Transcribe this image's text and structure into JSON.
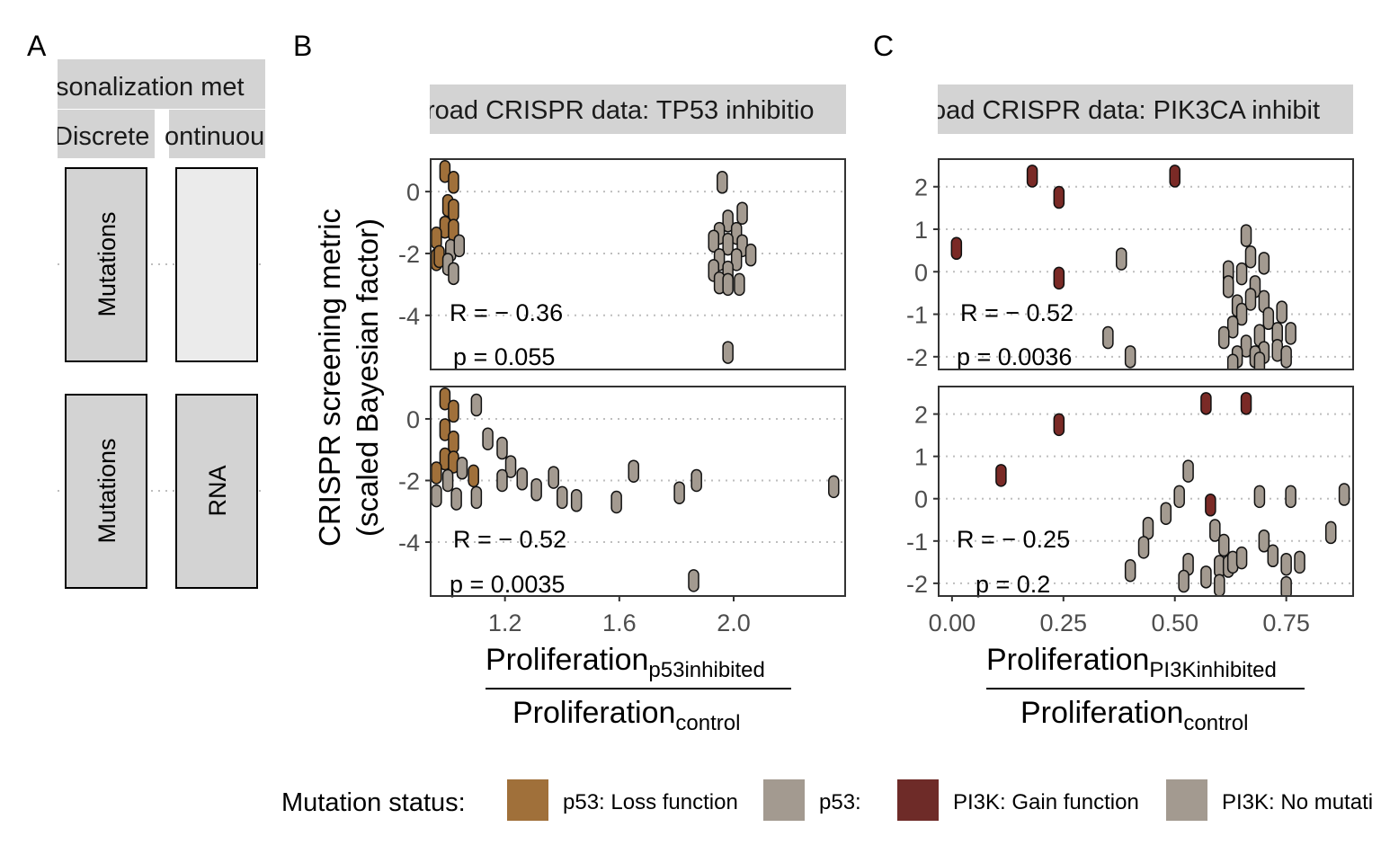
{
  "panel_labels": {
    "a": "A",
    "b": "B",
    "c": "C"
  },
  "panel_a": {
    "strip_title": "sonalization met",
    "col_discrete": "Discrete",
    "col_continuous": "ontinuou",
    "rows": [
      {
        "discrete": "Mutations",
        "continuous": ""
      },
      {
        "discrete": "Mutations",
        "continuous": "RNA"
      }
    ]
  },
  "y_title_line1": "CRISPR screening metric",
  "y_title_line2": "(scaled Bayesian factor)",
  "x_title_b": {
    "numerator": "Proliferation",
    "numerator_sub": "p53inhibited",
    "denominator": "Proliferation",
    "denominator_sub": "control"
  },
  "x_title_c": {
    "numerator": "Proliferation",
    "numerator_sub": "PI3Kinhibited",
    "denominator": "Proliferation",
    "denominator_sub": "control"
  },
  "legend": {
    "title": "Mutation status:",
    "items": [
      {
        "label": "p53: Loss function",
        "color": "#A0703A"
      },
      {
        "label": "p53:",
        "color": "#A39A90"
      },
      {
        "label": "PI3K: Gain function",
        "color": "#6E2B28"
      },
      {
        "label": "PI3K: No mutati",
        "color": "#A39A90"
      }
    ]
  },
  "colors": {
    "loss": "#A0703A",
    "gain": "#7A2A26",
    "none": "#A39A90",
    "strip": "#D3D3D3",
    "grid": "#BEBEBE"
  },
  "chart_data": [
    {
      "type": "scatter",
      "title": "road CRISPR data: TP53 inhibitio",
      "xticks": [
        "1.2",
        "1.6",
        "2.0"
      ],
      "xtick_values": [
        1.2,
        1.6,
        2.0
      ],
      "xlim": [
        0.94,
        2.39
      ],
      "panels": [
        {
          "ylim": [
            -5.75,
            1.05
          ],
          "yticks": [
            0,
            -2,
            -4
          ],
          "annotation": {
            "r": "R = − 0.36",
            "p": "p = 0.055"
          },
          "points": [
            {
              "x": 0.99,
              "y": 0.65,
              "s": "loss"
            },
            {
              "x": 1.02,
              "y": 0.3,
              "s": "loss"
            },
            {
              "x": 1.0,
              "y": -0.45,
              "s": "loss"
            },
            {
              "x": 1.02,
              "y": -0.6,
              "s": "loss"
            },
            {
              "x": 0.99,
              "y": -1.15,
              "s": "loss"
            },
            {
              "x": 1.02,
              "y": -1.25,
              "s": "loss"
            },
            {
              "x": 0.96,
              "y": -1.5,
              "s": "loss"
            },
            {
              "x": 0.96,
              "y": -2.2,
              "s": "loss"
            },
            {
              "x": 0.97,
              "y": -2.1,
              "s": "loss"
            },
            {
              "x": 1.01,
              "y": -1.9,
              "s": "none"
            },
            {
              "x": 1.04,
              "y": -1.75,
              "s": "none"
            },
            {
              "x": 1.0,
              "y": -2.35,
              "s": "none"
            },
            {
              "x": 1.02,
              "y": -2.65,
              "s": "none"
            },
            {
              "x": 1.96,
              "y": 0.3,
              "s": "none"
            },
            {
              "x": 2.03,
              "y": -0.7,
              "s": "none"
            },
            {
              "x": 1.98,
              "y": -0.95,
              "s": "none"
            },
            {
              "x": 1.95,
              "y": -1.35,
              "s": "none"
            },
            {
              "x": 2.01,
              "y": -1.35,
              "s": "none"
            },
            {
              "x": 1.93,
              "y": -1.6,
              "s": "none"
            },
            {
              "x": 1.98,
              "y": -1.7,
              "s": "none"
            },
            {
              "x": 2.03,
              "y": -1.75,
              "s": "none"
            },
            {
              "x": 2.06,
              "y": -2.05,
              "s": "none"
            },
            {
              "x": 1.95,
              "y": -2.2,
              "s": "none"
            },
            {
              "x": 2.01,
              "y": -2.2,
              "s": "none"
            },
            {
              "x": 1.93,
              "y": -2.55,
              "s": "none"
            },
            {
              "x": 1.98,
              "y": -2.6,
              "s": "none"
            },
            {
              "x": 1.95,
              "y": -2.95,
              "s": "none"
            },
            {
              "x": 1.98,
              "y": -3.0,
              "s": "none"
            },
            {
              "x": 2.02,
              "y": -3.0,
              "s": "none"
            },
            {
              "x": 1.98,
              "y": -5.2,
              "s": "none"
            }
          ]
        },
        {
          "ylim": [
            -5.75,
            1.05
          ],
          "yticks": [
            0,
            -2,
            -4
          ],
          "annotation": {
            "r": "R = − 0.52",
            "p": "p = 0.0035"
          },
          "points": [
            {
              "x": 0.99,
              "y": 0.65,
              "s": "loss"
            },
            {
              "x": 1.02,
              "y": 0.25,
              "s": "loss"
            },
            {
              "x": 0.99,
              "y": -0.35,
              "s": "loss"
            },
            {
              "x": 1.02,
              "y": -0.75,
              "s": "loss"
            },
            {
              "x": 0.99,
              "y": -1.3,
              "s": "loss"
            },
            {
              "x": 1.02,
              "y": -1.4,
              "s": "loss"
            },
            {
              "x": 0.96,
              "y": -1.75,
              "s": "loss"
            },
            {
              "x": 1.09,
              "y": -1.85,
              "s": "loss"
            },
            {
              "x": 1.1,
              "y": 0.45,
              "s": "none"
            },
            {
              "x": 1.14,
              "y": -0.65,
              "s": "none"
            },
            {
              "x": 1.19,
              "y": -0.95,
              "s": "none"
            },
            {
              "x": 1.05,
              "y": -1.6,
              "s": "none"
            },
            {
              "x": 1.22,
              "y": -1.55,
              "s": "none"
            },
            {
              "x": 1.26,
              "y": -1.95,
              "s": "none"
            },
            {
              "x": 1.19,
              "y": -2.0,
              "s": "none"
            },
            {
              "x": 1.31,
              "y": -2.3,
              "s": "none"
            },
            {
              "x": 1.37,
              "y": -1.9,
              "s": "none"
            },
            {
              "x": 1.4,
              "y": -2.55,
              "s": "none"
            },
            {
              "x": 1.45,
              "y": -2.65,
              "s": "none"
            },
            {
              "x": 1.59,
              "y": -2.7,
              "s": "none"
            },
            {
              "x": 1.65,
              "y": -1.7,
              "s": "none"
            },
            {
              "x": 1.81,
              "y": -2.4,
              "s": "none"
            },
            {
              "x": 1.87,
              "y": -2.0,
              "s": "none"
            },
            {
              "x": 2.35,
              "y": -2.2,
              "s": "none"
            },
            {
              "x": 1.86,
              "y": -5.25,
              "s": "none"
            },
            {
              "x": 0.96,
              "y": -2.5,
              "s": "none"
            },
            {
              "x": 1.0,
              "y": -2.0,
              "s": "none"
            },
            {
              "x": 1.03,
              "y": -2.6,
              "s": "none"
            },
            {
              "x": 1.1,
              "y": -2.55,
              "s": "none"
            }
          ]
        }
      ]
    },
    {
      "type": "scatter",
      "title": "oad CRISPR data: PIK3CA inhibit",
      "xticks": [
        "0.00",
        "0.25",
        "0.50",
        "0.75"
      ],
      "xtick_values": [
        0.0,
        0.25,
        0.5,
        0.75
      ],
      "xlim": [
        -0.03,
        0.9
      ],
      "panels": [
        {
          "ylim": [
            -2.3,
            2.65
          ],
          "yticks": [
            2,
            1,
            0,
            -1,
            -2
          ],
          "annotation": {
            "r": "R = − 0.52",
            "p": "p = 0.0036"
          },
          "points": [
            {
              "x": 0.18,
              "y": 2.25,
              "s": "gain"
            },
            {
              "x": 0.5,
              "y": 2.25,
              "s": "gain"
            },
            {
              "x": 0.24,
              "y": 1.75,
              "s": "gain"
            },
            {
              "x": 0.01,
              "y": 0.55,
              "s": "gain"
            },
            {
              "x": 0.24,
              "y": -0.15,
              "s": "gain"
            },
            {
              "x": 0.38,
              "y": 0.3,
              "s": "none"
            },
            {
              "x": 0.66,
              "y": 0.85,
              "s": "none"
            },
            {
              "x": 0.62,
              "y": 0.0,
              "s": "none"
            },
            {
              "x": 0.65,
              "y": -0.05,
              "s": "none"
            },
            {
              "x": 0.67,
              "y": 0.35,
              "s": "none"
            },
            {
              "x": 0.7,
              "y": 0.2,
              "s": "none"
            },
            {
              "x": 0.62,
              "y": -0.35,
              "s": "none"
            },
            {
              "x": 0.68,
              "y": -0.35,
              "s": "none"
            },
            {
              "x": 0.64,
              "y": -0.8,
              "s": "none"
            },
            {
              "x": 0.67,
              "y": -0.65,
              "s": "none"
            },
            {
              "x": 0.7,
              "y": -0.7,
              "s": "none"
            },
            {
              "x": 0.65,
              "y": -1.0,
              "s": "none"
            },
            {
              "x": 0.71,
              "y": -1.1,
              "s": "none"
            },
            {
              "x": 0.74,
              "y": -0.95,
              "s": "none"
            },
            {
              "x": 0.63,
              "y": -1.3,
              "s": "none"
            },
            {
              "x": 0.69,
              "y": -1.5,
              "s": "none"
            },
            {
              "x": 0.73,
              "y": -1.45,
              "s": "none"
            },
            {
              "x": 0.76,
              "y": -1.45,
              "s": "none"
            },
            {
              "x": 0.61,
              "y": -1.55,
              "s": "none"
            },
            {
              "x": 0.66,
              "y": -1.75,
              "s": "none"
            },
            {
              "x": 0.7,
              "y": -1.9,
              "s": "none"
            },
            {
              "x": 0.73,
              "y": -1.85,
              "s": "none"
            },
            {
              "x": 0.64,
              "y": -2.0,
              "s": "none"
            },
            {
              "x": 0.68,
              "y": -2.0,
              "s": "none"
            },
            {
              "x": 0.75,
              "y": -2.0,
              "s": "none"
            },
            {
              "x": 0.63,
              "y": -2.2,
              "s": "none"
            },
            {
              "x": 0.69,
              "y": -2.15,
              "s": "none"
            },
            {
              "x": 0.35,
              "y": -1.55,
              "s": "none"
            },
            {
              "x": 0.4,
              "y": -2.0,
              "s": "none"
            }
          ]
        },
        {
          "ylim": [
            -2.3,
            2.65
          ],
          "yticks": [
            2,
            1,
            0,
            -1,
            -2
          ],
          "annotation": {
            "r": "R = − 0.25",
            "p": "p = 0.2"
          },
          "points": [
            {
              "x": 0.57,
              "y": 2.25,
              "s": "gain"
            },
            {
              "x": 0.66,
              "y": 2.25,
              "s": "gain"
            },
            {
              "x": 0.24,
              "y": 1.75,
              "s": "gain"
            },
            {
              "x": 0.11,
              "y": 0.55,
              "s": "gain"
            },
            {
              "x": 0.58,
              "y": -0.15,
              "s": "gain"
            },
            {
              "x": 0.53,
              "y": 0.65,
              "s": "none"
            },
            {
              "x": 0.51,
              "y": 0.05,
              "s": "none"
            },
            {
              "x": 0.48,
              "y": -0.35,
              "s": "none"
            },
            {
              "x": 0.44,
              "y": -0.7,
              "s": "none"
            },
            {
              "x": 0.43,
              "y": -1.15,
              "s": "none"
            },
            {
              "x": 0.4,
              "y": -1.7,
              "s": "none"
            },
            {
              "x": 0.53,
              "y": -1.55,
              "s": "none"
            },
            {
              "x": 0.52,
              "y": -1.95,
              "s": "none"
            },
            {
              "x": 0.57,
              "y": -1.85,
              "s": "none"
            },
            {
              "x": 0.59,
              "y": -0.75,
              "s": "none"
            },
            {
              "x": 0.61,
              "y": -1.1,
              "s": "none"
            },
            {
              "x": 0.6,
              "y": -1.6,
              "s": "none"
            },
            {
              "x": 0.62,
              "y": -1.6,
              "s": "none"
            },
            {
              "x": 0.6,
              "y": -2.05,
              "s": "none"
            },
            {
              "x": 0.63,
              "y": -1.5,
              "s": "none"
            },
            {
              "x": 0.65,
              "y": -1.4,
              "s": "none"
            },
            {
              "x": 0.7,
              "y": -1.0,
              "s": "none"
            },
            {
              "x": 0.72,
              "y": -1.35,
              "s": "none"
            },
            {
              "x": 0.69,
              "y": 0.05,
              "s": "none"
            },
            {
              "x": 0.75,
              "y": -1.55,
              "s": "none"
            },
            {
              "x": 0.78,
              "y": -1.5,
              "s": "none"
            },
            {
              "x": 0.76,
              "y": 0.05,
              "s": "none"
            },
            {
              "x": 0.75,
              "y": -2.1,
              "s": "none"
            },
            {
              "x": 0.85,
              "y": -0.8,
              "s": "none"
            },
            {
              "x": 0.88,
              "y": 0.1,
              "s": "none"
            }
          ]
        }
      ]
    }
  ]
}
